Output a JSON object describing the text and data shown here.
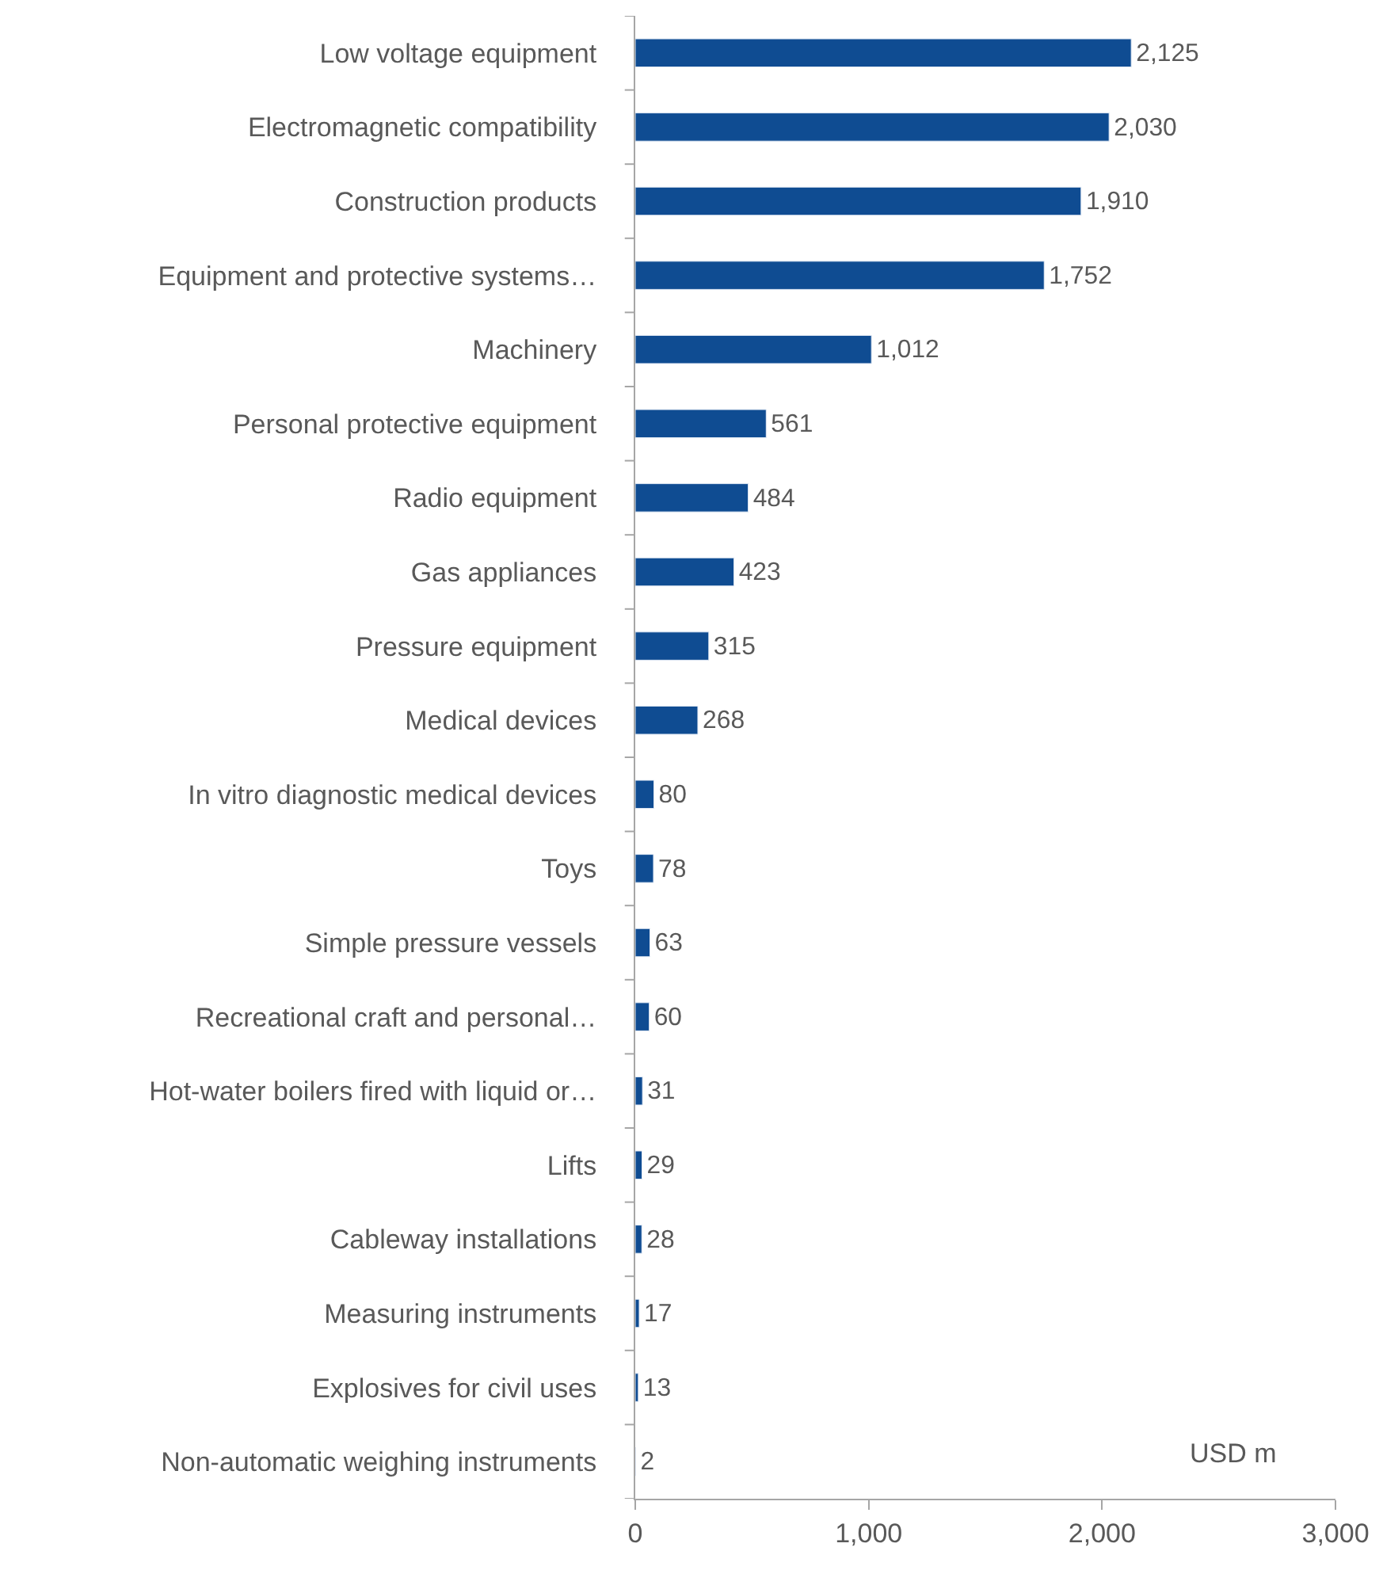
{
  "chart_data": {
    "type": "bar",
    "orientation": "horizontal",
    "categories": [
      "Low voltage equipment",
      "Electromagnetic compatibility",
      "Construction products",
      "Equipment and protective systems…",
      "Machinery",
      "Personal protective equipment",
      "Radio equipment",
      "Gas appliances",
      "Pressure equipment",
      "Medical devices",
      "In vitro diagnostic medical devices",
      "Toys",
      "Simple pressure vessels",
      "Recreational craft and personal…",
      "Hot-water boilers fired with liquid or…",
      "Lifts",
      "Cableway installations",
      "Measuring instruments",
      "Explosives for civil uses",
      "Non-automatic weighing instruments"
    ],
    "values": [
      2125,
      2030,
      1910,
      1752,
      1012,
      561,
      484,
      423,
      315,
      268,
      80,
      78,
      63,
      60,
      31,
      29,
      28,
      17,
      13,
      2
    ],
    "value_labels": [
      "2,125",
      "2,030",
      "1,910",
      "1,752",
      "1,012",
      "561",
      "484",
      "423",
      "315",
      "268",
      "80",
      "78",
      "63",
      "60",
      "31",
      "29",
      "28",
      "17",
      "13",
      "2"
    ],
    "color": "#0f4c92",
    "xlim": [
      0,
      3000
    ],
    "xticks": [
      0,
      {
        "value": 1000,
        "label": "1,000"
      },
      {
        "value": 2000,
        "label": "2,000"
      },
      {
        "value": 3000,
        "label": "3,000"
      }
    ],
    "annotations": [
      "USD m"
    ],
    "legend": false
  }
}
